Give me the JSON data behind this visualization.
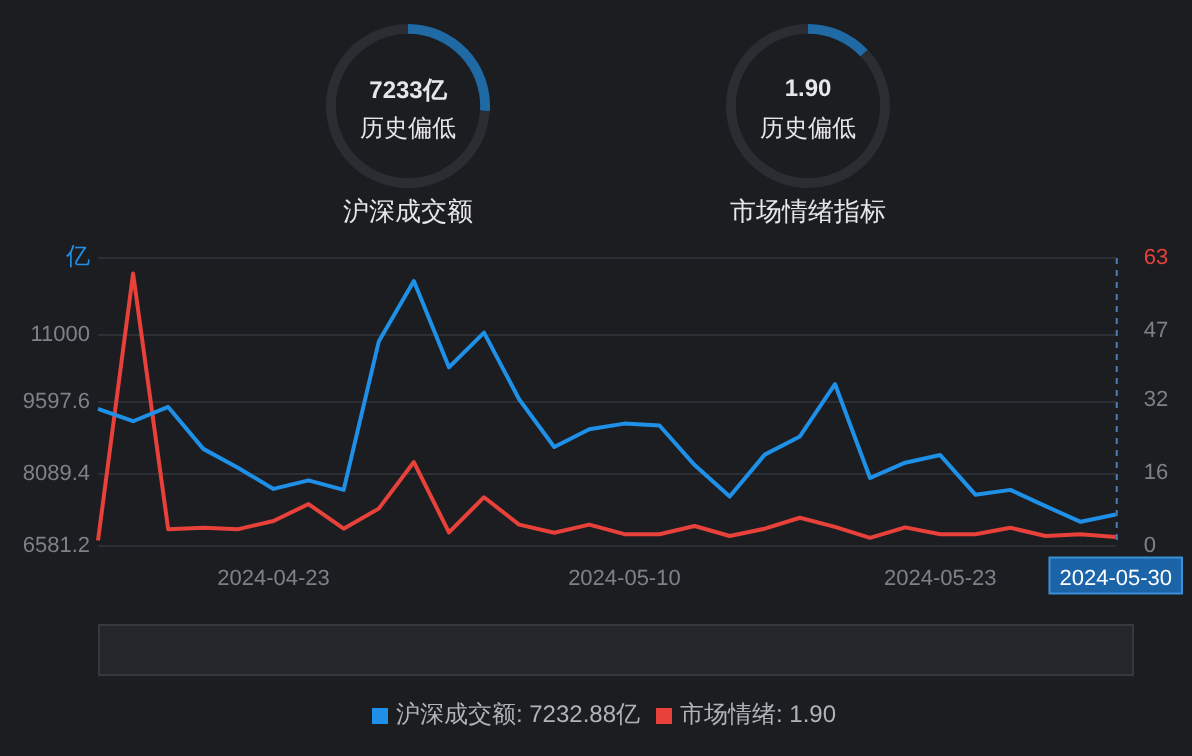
{
  "chart_data": [
    {
      "type": "donut",
      "title": "沪深成交额",
      "categories": [
        null,
        null
      ],
      "values": [
        26,
        74
      ],
      "colors": [
        "#1f6aa5",
        "#2b2d33"
      ],
      "annotations": [
        "7233亿",
        "历史偏低"
      ]
    },
    {
      "type": "donut",
      "title": "市场情绪指标",
      "categories": [
        null,
        null
      ],
      "values": [
        13,
        87
      ],
      "colors": [
        "#1f6aa5",
        "#2b2d33"
      ],
      "annotations": [
        "1.90",
        "历史偏低"
      ]
    },
    {
      "type": "line",
      "ylabel": "亿",
      "categories": [
        null,
        null,
        null,
        null,
        null,
        "2024-04-23",
        null,
        null,
        null,
        null,
        null,
        null,
        null,
        null,
        null,
        "2024-05-10",
        null,
        null,
        null,
        null,
        null,
        null,
        null,
        null,
        "2024-05-23",
        null,
        null,
        null,
        null,
        "2024-05-30"
      ],
      "series": [
        {
          "name": "沪深成交额: 7232.88亿",
          "color": "#1e90e8",
          "values": [
            9450,
            9190,
            9490,
            8610,
            8210,
            7770,
            7950,
            7750,
            10860,
            12130,
            10320,
            11050,
            9650,
            8650,
            9020,
            9140,
            9100,
            8270,
            7610,
            8490,
            8870,
            9970,
            8000,
            8320,
            8480,
            7650,
            7750,
            7410,
            7080,
            7232.88
          ]
        },
        {
          "name": "市场情绪: 1.90",
          "color": "#e8413a",
          "axis": "y2",
          "values": [
            1.1,
            59.6,
            3.6,
            3.9,
            3.6,
            5.4,
            9.1,
            3.7,
            8.1,
            18.3,
            2.9,
            10.6,
            4.6,
            2.8,
            4.6,
            2.5,
            2.5,
            4.3,
            2.1,
            3.7,
            6.1,
            4.1,
            1.7,
            4.0,
            2.5,
            2.5,
            3.9,
            2.1,
            2.5,
            1.9
          ]
        }
      ],
      "ylim": [
        6581.2,
        12614
      ],
      "yticks": [
        6581.2,
        8089.4,
        9597.6,
        11000,
        {
          "value": 12614,
          "label": null
        }
      ],
      "y2lim": [
        0,
        63
      ],
      "y2ticks": [
        0,
        16,
        32,
        47,
        63
      ],
      "grid": "y",
      "legend": "bottom",
      "marker": "none",
      "line_style": "solid"
    }
  ]
}
